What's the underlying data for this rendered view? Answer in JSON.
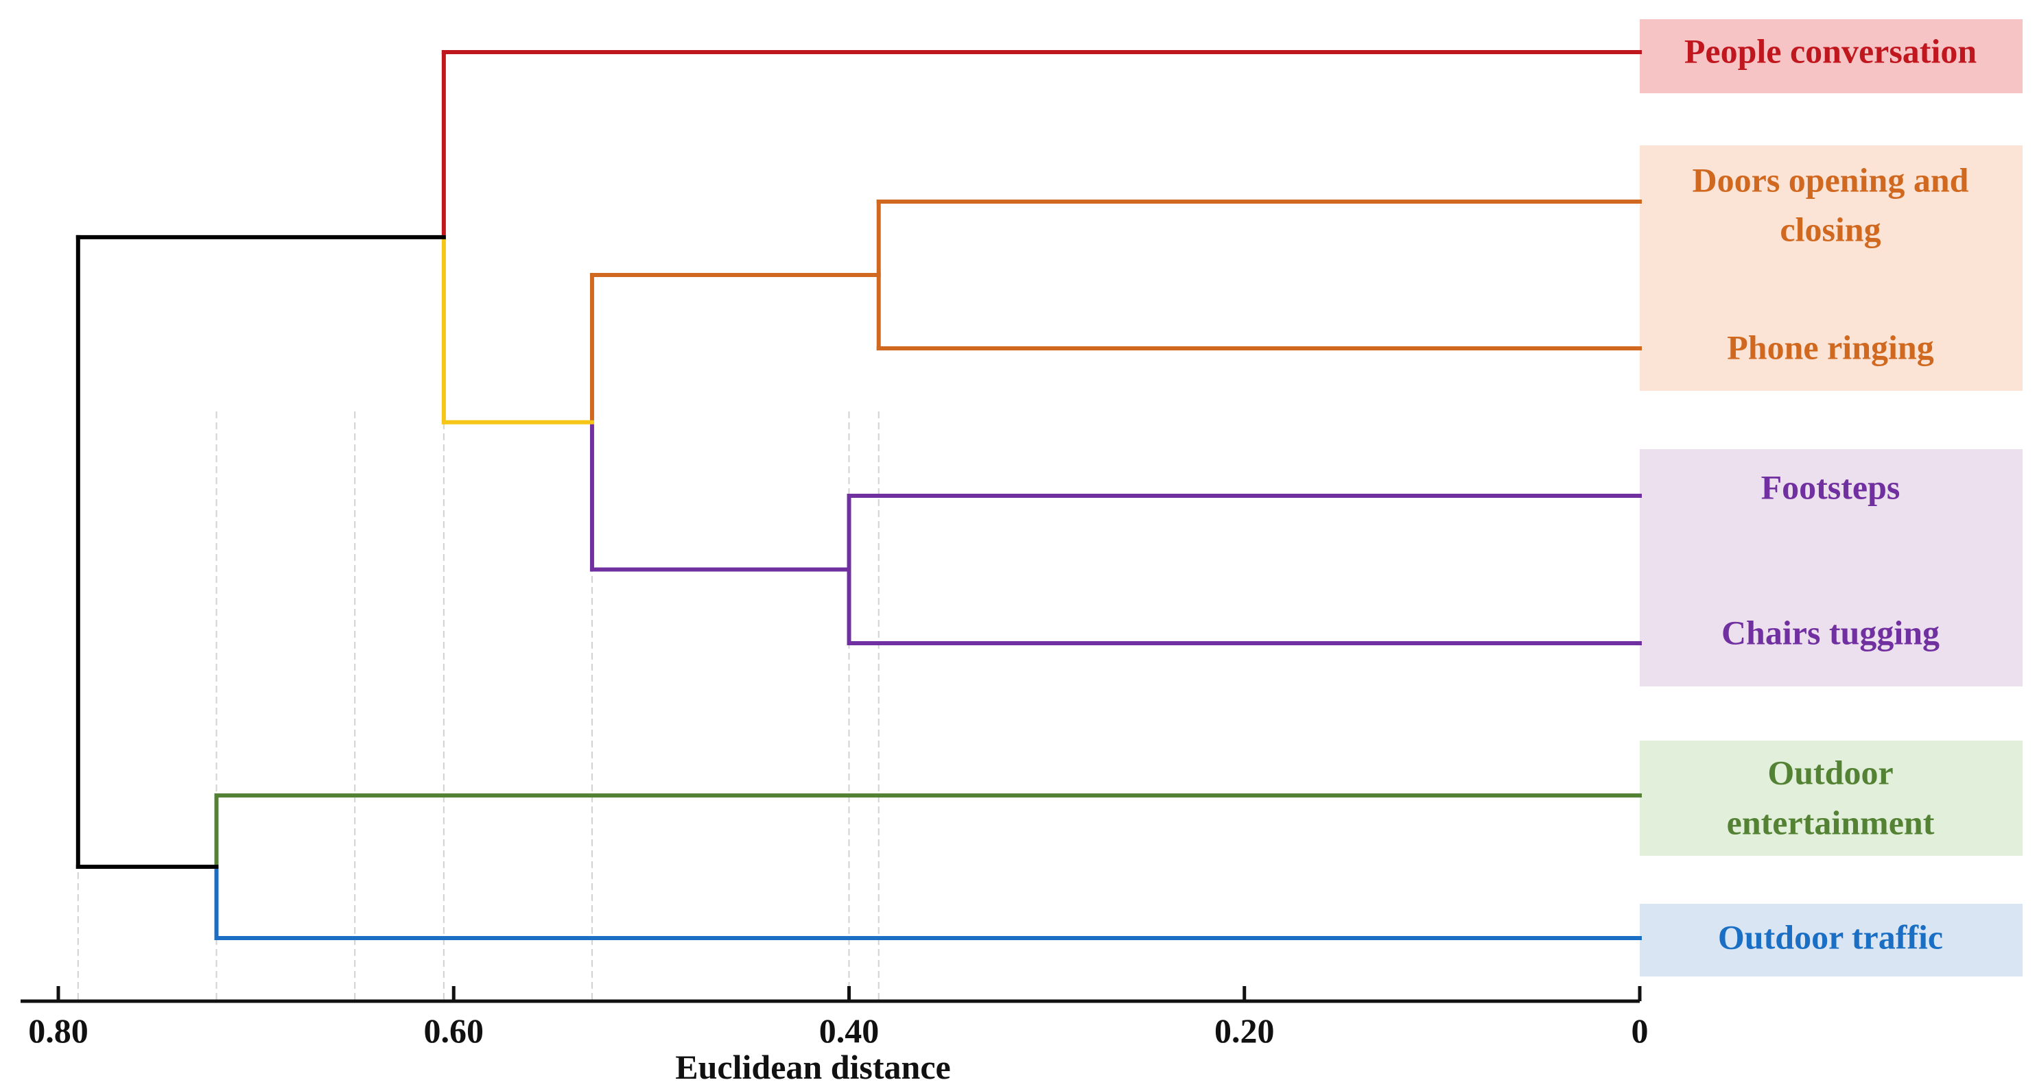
{
  "chart_data": {
    "type": "dendrogram",
    "title": "",
    "xlabel": "Euclidean distance",
    "ylabel": "",
    "xlim": [
      0.8,
      0
    ],
    "x_ticks": [
      {
        "value": 0.8,
        "label": "0.80"
      },
      {
        "value": 0.6,
        "label": "0.60"
      },
      {
        "value": 0.4,
        "label": "0.40"
      },
      {
        "value": 0.2,
        "label": "0.20"
      },
      {
        "value": 0,
        "label": "0"
      }
    ],
    "leaves": [
      {
        "id": "people",
        "lines": [
          "People conversation"
        ],
        "color": "#c0171f",
        "box_color": "#f7c4c6"
      },
      {
        "id": "doors",
        "lines": [
          "Doors opening and",
          "closing"
        ],
        "color": "#d0691f",
        "box_color": "#fbe3d6"
      },
      {
        "id": "phone",
        "lines": [
          "Phone ringing"
        ],
        "color": "#d0691f",
        "box_color": "#fbe3d6"
      },
      {
        "id": "footsteps",
        "lines": [
          "Footsteps"
        ],
        "color": "#7030a0",
        "box_color": "#ede0ee"
      },
      {
        "id": "chairs",
        "lines": [
          "Chairs tugging"
        ],
        "color": "#7030a0",
        "box_color": "#ede0ee"
      },
      {
        "id": "outent",
        "lines": [
          "Outdoor",
          "entertainment"
        ],
        "color": "#548235",
        "box_color": "#e2efda"
      },
      {
        "id": "outtraffic",
        "lines": [
          "Outdoor traffic"
        ],
        "color": "#1a6fc4",
        "box_color": "#dae5f3"
      }
    ],
    "merges": [
      {
        "id": "m1",
        "left": "doors",
        "right": "phone",
        "distance": 0.385,
        "color": "#d0691f"
      },
      {
        "id": "m2",
        "left": "footsteps",
        "right": "chairs",
        "distance": 0.4,
        "color": "#7030a0"
      },
      {
        "id": "m3",
        "left": "m1",
        "right": "m2",
        "distance": 0.53,
        "left_color": "#d0691f",
        "right_color": "#7030a0"
      },
      {
        "id": "m4",
        "left": "people",
        "right": "m3",
        "distance": 0.605,
        "left_color": "#c0171f",
        "right_color": "#f5c518"
      },
      {
        "id": "m5",
        "left": "outent",
        "right": "outtraffic",
        "distance": 0.72,
        "left_color": "#548235",
        "right_color": "#1a6fc4"
      },
      {
        "id": "m6",
        "left": "m4",
        "right": "m5",
        "distance": 0.79,
        "color": "#000000"
      }
    ],
    "guide_distances": [
      0.79,
      0.72,
      0.65,
      0.605,
      0.53,
      0.4,
      0.385
    ],
    "grid": false
  }
}
